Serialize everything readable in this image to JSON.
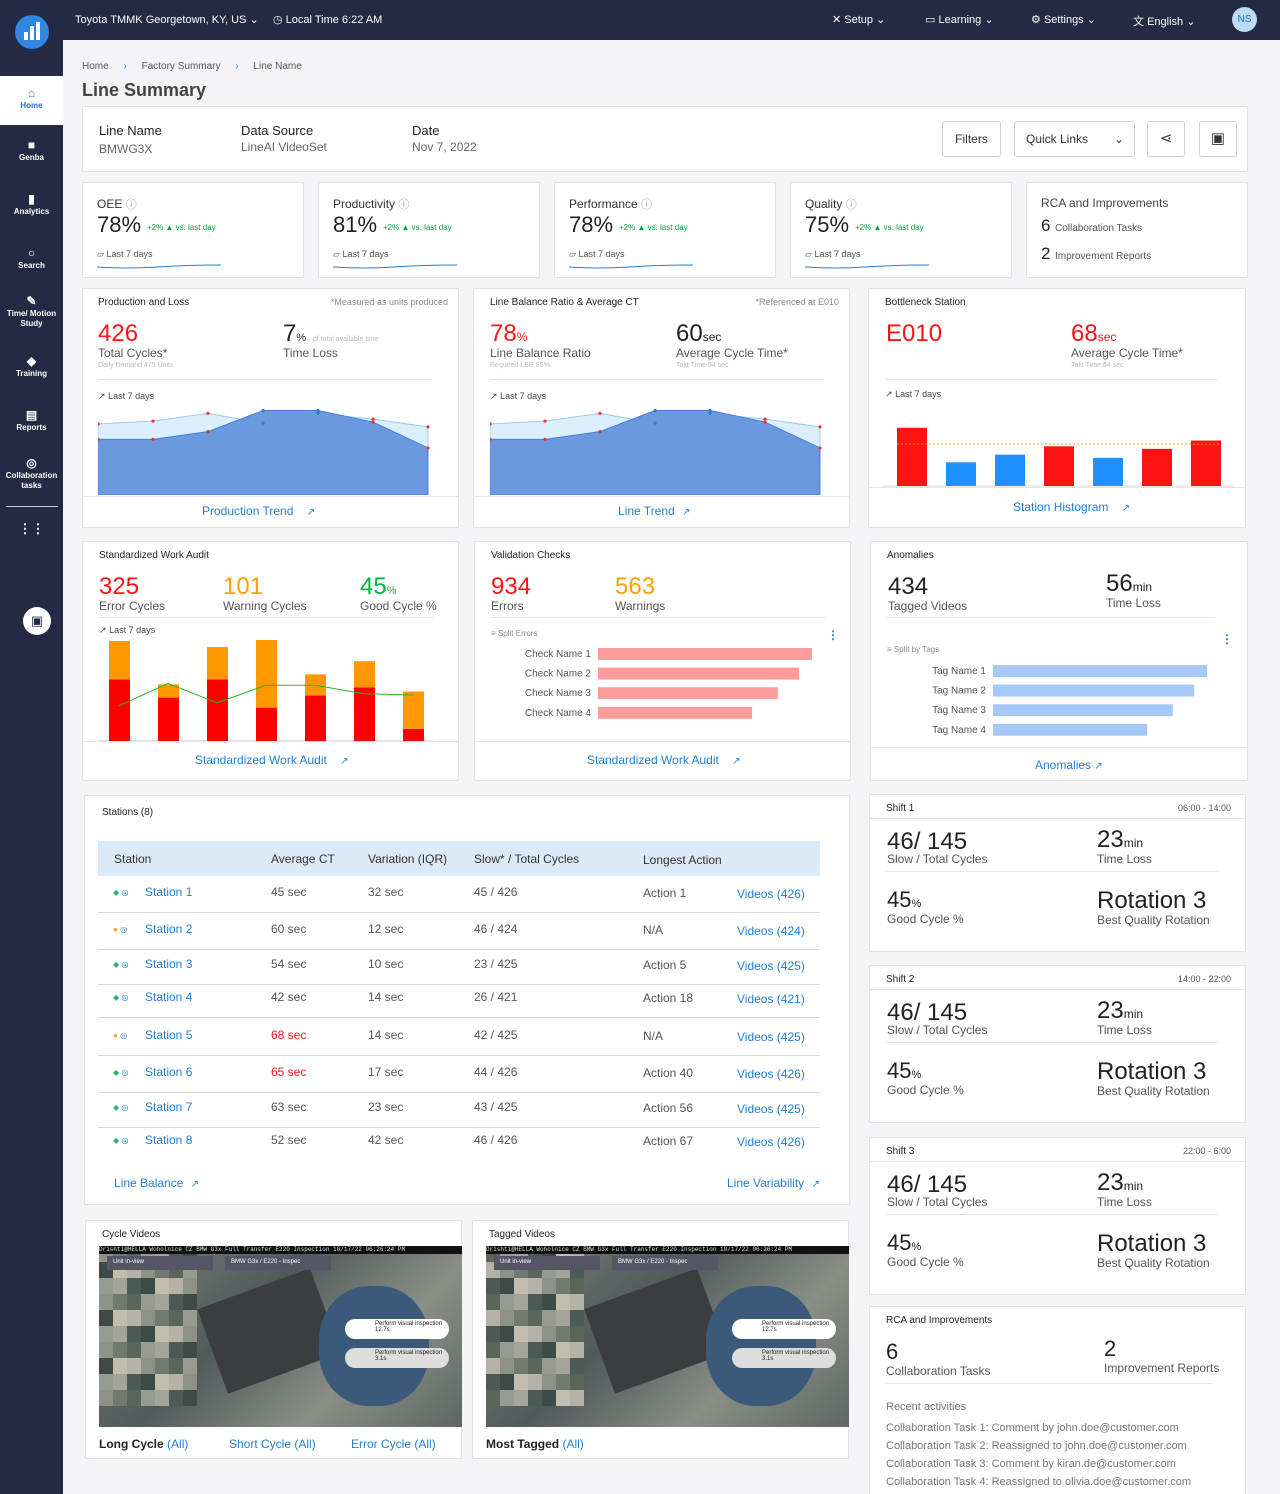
{
  "header": {
    "location": "Toyota TMMK Georgetown, KY, US",
    "time": "Local Time 6:22 AM",
    "setup": "Setup",
    "learning": "Learning",
    "settings": "Settings",
    "language": "English",
    "avatar": "NS"
  },
  "sidebar": {
    "items": [
      {
        "label": "Home",
        "icon": "home-icon"
      },
      {
        "label": "Genba",
        "icon": "video-camera-icon"
      },
      {
        "label": "Analytics",
        "icon": "bar-chart-icon"
      },
      {
        "label": "Search",
        "icon": "search-icon"
      },
      {
        "label": "Time/ Motion Study",
        "icon": "edit-icon"
      },
      {
        "label": "Training",
        "icon": "graduation-cap-icon"
      },
      {
        "label": "Reports",
        "icon": "document-icon"
      },
      {
        "label": "Collaboration tasks",
        "icon": "collaboration-icon"
      }
    ]
  },
  "breadcrumb": [
    "Home",
    "Factory Summary",
    "Line Name"
  ],
  "page_title": "Line Summary",
  "info": {
    "line_label": "Line Name",
    "line_value": "BMWG3X",
    "source_label": "Data Source",
    "source_value": "LineAI VideoSet",
    "date_label": "Date",
    "date_value": "Nov 7, 2022",
    "filters": "Filters",
    "quick_links": "Quick Links"
  },
  "kpis": [
    {
      "label": "OEE",
      "value": "78%",
      "delta": "+2%",
      "vs": "vs. last day",
      "period": "Last 7 days"
    },
    {
      "label": "Productivity",
      "value": "81%",
      "delta": "+2%",
      "vs": "vs. last day",
      "period": "Last 7 days"
    },
    {
      "label": "Performance",
      "value": "78%",
      "delta": "+2%",
      "vs": "vs. last day",
      "period": "Last 7 days"
    },
    {
      "label": "Quality",
      "value": "75%",
      "delta": "+2%",
      "vs": "vs. last day",
      "period": "Last 7 days"
    }
  ],
  "rca_top": {
    "title": "RCA and Improvements",
    "n1": "6",
    "l1": "Collaboration Tasks",
    "n2": "2",
    "l2": "Improvement Reports"
  },
  "production": {
    "title": "Production and Loss",
    "note": "*Measured as units produced",
    "v1": "426",
    "l1": "Total Cycles*",
    "s1": "Daily Demand 475 Units",
    "v2": "7",
    "u2": "%",
    "s2": "of total available time",
    "l2": "Time Loss",
    "period": "Last 7 days",
    "link": "Production Trend"
  },
  "linebalance": {
    "title": "Line Balance Ratio & Average CT",
    "note": "*Referenced at E010",
    "v1": "78",
    "u1": "%",
    "l1": "Line Balance Ratio",
    "s1": "Required LBR 85%",
    "v2": "60",
    "u2": "sec",
    "l2": "Average Cycle Time*",
    "s2": "Takt Time 64 sec",
    "period": "Last 7 days",
    "link": "Line Trend"
  },
  "bottleneck": {
    "title": "Bottleneck Station",
    "v1": "E010",
    "v2": "68",
    "u2": "sec",
    "l2": "Average Cycle Time*",
    "s2": "Takt Time 64 sec",
    "period": "Last 7 days",
    "link": "Station Histogram"
  },
  "swa": {
    "title": "Standardized Work Audit",
    "v1": "325",
    "l1": "Error Cycles",
    "v2": "101",
    "l2": "Warning Cycles",
    "v3": "45",
    "u3": "%",
    "l3": "Good Cycle %",
    "period": "Last 7 days",
    "link": "Standardized Work Audit"
  },
  "validation": {
    "title": "Validation Checks",
    "v1": "934",
    "l1": "Errors",
    "v2": "563",
    "l2": "Warnings",
    "split": "Split Errors",
    "link": "Standardized Work Audit"
  },
  "anomalies": {
    "title": "Anomalies",
    "v1": "434",
    "l1": "Tagged Videos",
    "v2": "56",
    "u2": "min",
    "l2": "Time Loss",
    "split": "Split by Tags",
    "link": "Anomalies"
  },
  "chart_data": [
    {
      "type": "area",
      "name": "production-trend",
      "series": [
        {
          "values": [
            0.58,
            0.58,
            0.66,
            0.88,
            0.88,
            0.76,
            0.49
          ]
        },
        {
          "values": [
            0.74,
            0.77,
            0.85,
            0.75,
            0.85,
            0.79,
            0.71
          ]
        }
      ]
    },
    {
      "type": "area",
      "name": "line-trend",
      "series": [
        {
          "values": [
            0.58,
            0.58,
            0.66,
            0.88,
            0.88,
            0.76,
            0.49
          ]
        },
        {
          "values": [
            0.74,
            0.77,
            0.85,
            0.75,
            0.85,
            0.79,
            0.71
          ]
        }
      ]
    },
    {
      "type": "bar",
      "name": "station-histogram",
      "values": [
        0.91,
        0.37,
        0.49,
        0.62,
        0.44,
        0.58,
        0.71
      ],
      "colors": [
        "#ff1212",
        "#1e90ff",
        "#1e90ff",
        "#ff1212",
        "#1e90ff",
        "#ff1212",
        "#ff1212"
      ],
      "reference": 0.5
    },
    {
      "type": "bar",
      "name": "swa-stacked",
      "series": [
        {
          "name": "error",
          "values": [
            0.61,
            0.43,
            0.61,
            0.33,
            0.45,
            0.53,
            0.12
          ]
        },
        {
          "name": "warning",
          "values": [
            0.38,
            0.13,
            0.32,
            0.67,
            0.21,
            0.26,
            0.37
          ]
        }
      ],
      "line": [
        0.58,
        0.95,
        0.63,
        0.92,
        0.92,
        0.78,
        0.76
      ]
    },
    {
      "type": "bar",
      "name": "split-errors",
      "categories": [
        "Check Name 1",
        "Check Name 2",
        "Check Name 3",
        "Check Name 4"
      ],
      "values": [
        1.0,
        0.94,
        0.84,
        0.72
      ]
    },
    {
      "type": "bar",
      "name": "split-by-tags",
      "categories": [
        "Tag Name 1",
        "Tag Name 2",
        "Tag Name 3",
        "Tag Name 4"
      ],
      "values": [
        1.0,
        0.94,
        0.84,
        0.72
      ]
    }
  ],
  "stations": {
    "title": "Stations (8)",
    "headers": [
      "Station",
      "Average CT",
      "Variation (IQR)",
      "Slow* / Total Cycles",
      "Longest Action"
    ],
    "rows": [
      {
        "status": "green",
        "name": "Station 1",
        "ct": "45 sec",
        "iqr": "32 sec",
        "slow": "45 / 426",
        "action": "Action 1",
        "videos": "Videos (426)"
      },
      {
        "status": "orange",
        "name": "Station 2",
        "ct": "60 sec",
        "iqr": "12 sec",
        "slow": "46 / 424",
        "action": "N/A",
        "videos": "Videos (424)"
      },
      {
        "status": "green",
        "name": "Station 3",
        "ct": "54 sec",
        "iqr": "10 sec",
        "slow": "23 / 425",
        "action": "Action 5",
        "videos": "Videos (425)"
      },
      {
        "status": "green",
        "name": "Station 4",
        "ct": "42 sec",
        "iqr": "14 sec",
        "slow": "26 / 421",
        "action": "Action 18",
        "videos": "Videos (421)"
      },
      {
        "status": "orange",
        "name": "Station 5",
        "ct": "68 sec",
        "iqr": "14 sec",
        "slow": "42 / 425",
        "action": "N/A",
        "videos": "Videos (425)"
      },
      {
        "status": "green",
        "name": "Station 6",
        "ct": "65 sec",
        "iqr": "17 sec",
        "slow": "44 / 426",
        "action": "Action 40",
        "videos": "Videos (426)"
      },
      {
        "status": "green",
        "name": "Station 7",
        "ct": "63 sec",
        "iqr": "23 sec",
        "slow": "43 / 425",
        "action": "Action 56",
        "videos": "Videos (425)"
      },
      {
        "status": "green",
        "name": "Station 8",
        "ct": "52 sec",
        "iqr": "42 sec",
        "slow": "46 / 426",
        "action": "Action 67",
        "videos": "Videos (426)"
      }
    ],
    "link1": "Line Balance",
    "link2": "Line Variability"
  },
  "shifts": [
    {
      "title": "Shift 1",
      "time": "06:00 - 14:00",
      "v1": "46/ 145",
      "l1": "Slow / Total Cycles",
      "v2": "23",
      "u2": "min",
      "l2": "Time Loss",
      "v3": "45",
      "u3": "%",
      "l3": "Good Cycle %",
      "v4": "Rotation 3",
      "l4": "Best Quality Rotation"
    },
    {
      "title": "Shift 2",
      "time": "14:00 - 22:00",
      "v1": "46/ 145",
      "l1": "Slow / Total Cycles",
      "v2": "23",
      "u2": "min",
      "l2": "Time Loss",
      "v3": "45",
      "u3": "%",
      "l3": "Good Cycle %",
      "v4": "Rotation 3",
      "l4": "Best Quality Rotation"
    },
    {
      "title": "Shift 3",
      "time": "22:00 - 6:00",
      "v1": "46/ 145",
      "l1": "Slow / Total Cycles",
      "v2": "23",
      "u2": "min",
      "l2": "Time Loss",
      "v3": "45",
      "u3": "%",
      "l3": "Good Cycle %",
      "v4": "Rotation 3",
      "l4": "Best Quality Rotation"
    }
  ],
  "rca_bottom": {
    "title": "RCA and Improvements",
    "n1": "6",
    "l1": "Collaboration Tasks",
    "n2": "2",
    "l2": "Improvement Reports",
    "recent_title": "Recent activities",
    "activities": [
      "Collaboration Task 1: Comment by john.doe@customer.com",
      "Collaboration Task 2: Reassigned to john.doe@customer.com",
      "Collaboration Task 3: Comment by kiran.de@customer.com",
      "Collaboration Task 4: Reassigned to olivia.doe@customer.com"
    ]
  },
  "videos": {
    "cycle_title": "Cycle Videos",
    "tagged_title": "Tagged Videos",
    "overlay": "Drishti@HELLA Woholnice CZ BMW G3x Full Transfer E220 Inspection 10/17/22 06:26:24 PM",
    "unit": "Unit in-view",
    "tag": "BMW G3x / E220 - Inspec",
    "step1": "Perform visual inspection",
    "step1t": "12.7s",
    "step2": "Perform visual inspection",
    "step2t": "3.1s",
    "long": "Long Cycle",
    "short": "Short Cycle",
    "error": "Error Cycle",
    "all": "(All)",
    "most": "Most Tagged"
  }
}
